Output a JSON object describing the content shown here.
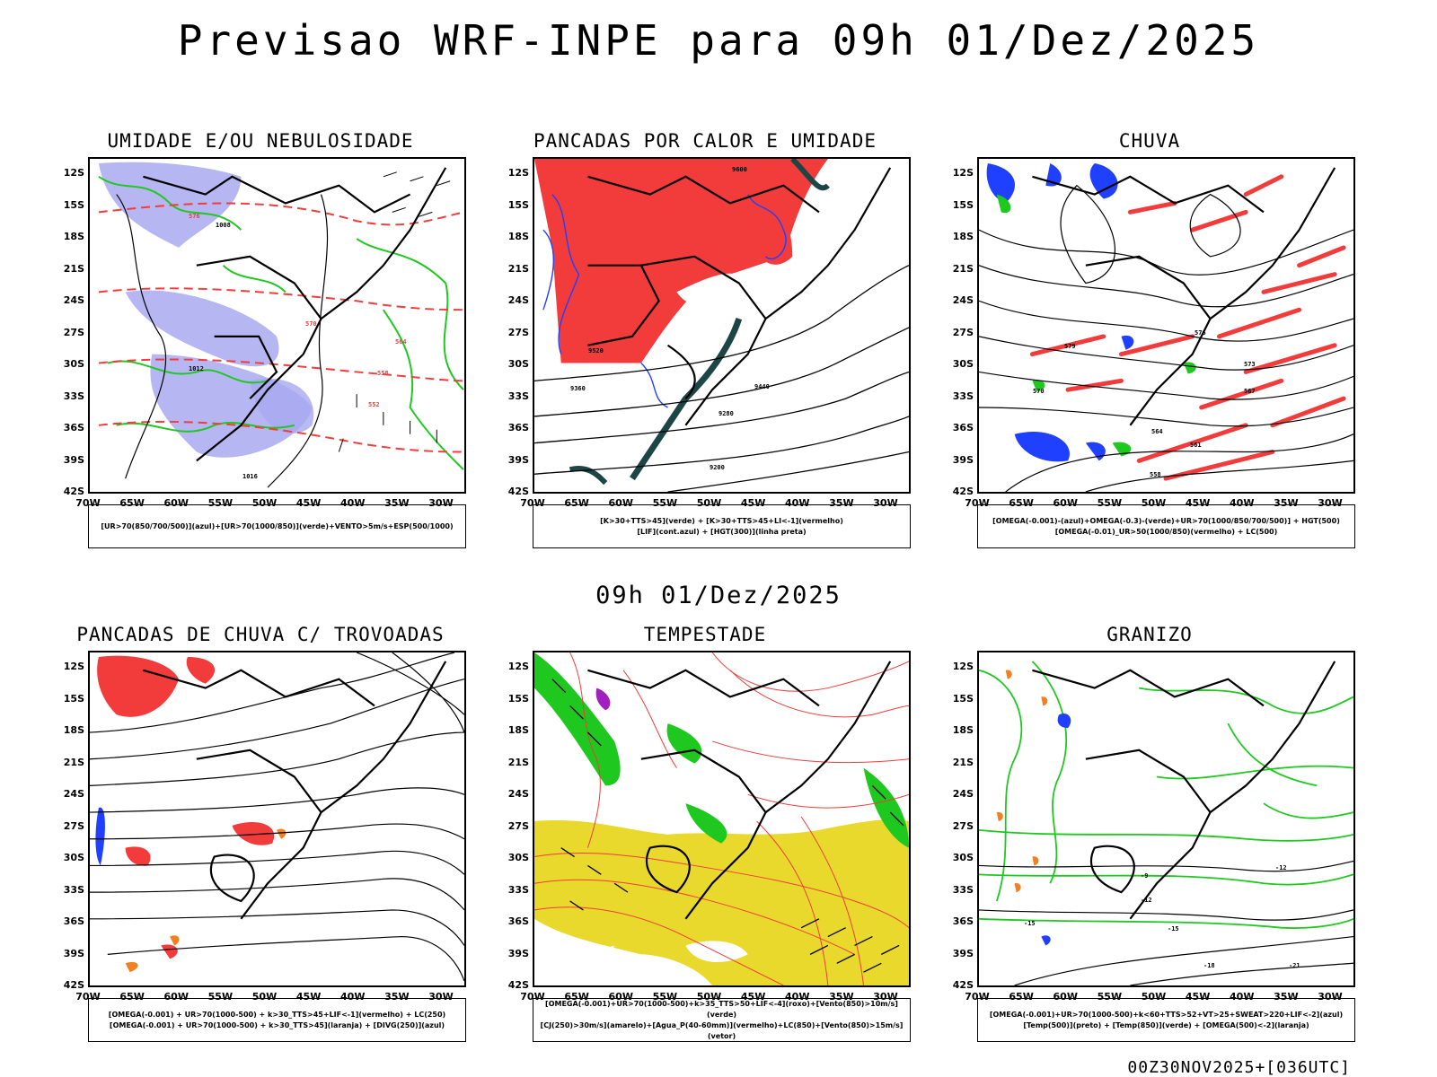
{
  "main_title": "Previsao WRF-INPE  para 09h 01/Dez/2025",
  "mid_time": "09h 01/Dez/2025",
  "footer": "00Z30NOV2025+[036UTC]",
  "axes": {
    "lat_labels": [
      "12S",
      "15S",
      "18S",
      "21S",
      "24S",
      "27S",
      "30S",
      "33S",
      "36S",
      "39S",
      "42S"
    ],
    "lon_labels": [
      "70W",
      "65W",
      "60W",
      "55W",
      "50W",
      "45W",
      "40W",
      "35W",
      "30W"
    ]
  },
  "colors": {
    "red": "#f23b3b",
    "green": "#1fc81f",
    "blue": "#2040ff",
    "lavender": "#a9a9f0",
    "yellow": "#e8d92c",
    "teal": "#1e4545",
    "purple": "#a020c0",
    "orange": "#f08020"
  },
  "panels": [
    {
      "title": "UMIDADE E/OU NEBULOSIDADE",
      "legend": [
        "[UR>70(850/700/500)](azul)+[UR>70(1000/850)](verde)+VENTO>5m/s+ESP(500/1000)"
      ],
      "contour_labels": [
        "1008",
        "1012",
        "1016",
        "576",
        "570",
        "564",
        "558",
        "552"
      ]
    },
    {
      "title": "PANCADAS POR CALOR E UMIDADE",
      "legend": [
        "[K>30+TTS>45](verde) + [K>30+TTS>45+LI<-1](vermelho)",
        "[LIF](cont.azul) + [HGT(300)](linha preta)"
      ],
      "contour_labels": [
        "9600",
        "9520",
        "9440",
        "9360",
        "9280",
        "9200"
      ]
    },
    {
      "title": "CHUVA",
      "legend": [
        "[OMEGA(-0.001)-(azul)+OMEGA(-0.3)-(verde)+UR>70(1000/850/700/500)] + HGT(500)",
        "[OMEGA(-0.01)_UR>50(1000/850)(vermelho) + LC(500)"
      ],
      "contour_labels": [
        "579",
        "576",
        "573",
        "570",
        "567",
        "564",
        "561",
        "558"
      ]
    },
    {
      "title": "PANCADAS DE CHUVA C/ TROVOADAS",
      "legend": [
        "[OMEGA(-0.001) + UR>70(1000-500) + k>30_TTS>45+LIF<-1](vermelho) + LC(250)",
        "[OMEGA(-0.001) + UR>70(1000-500) + k>30_TTS>45](laranja) + [DIVG(250)](azul)"
      ],
      "contour_labels": []
    },
    {
      "title": "TEMPESTADE",
      "legend": [
        "[OMEGA(-0.001)+UR>70(1000-500)+k>35_TTS>50+LIF<-4](roxo)+[Vento(850)>10m/s](verde)",
        "[CJ(250)>30m/s](amarelo)+[Agua_P(40-60mm)](vermelho)+LC(850)+[Vento(850)>15m/s](vetor)"
      ],
      "contour_labels": []
    },
    {
      "title": "GRANIZO",
      "legend": [
        "[OMEGA(-0.001)+UR>70(1000-500)+k<60+TTS>52+VT>25+SWEAT>220+LIF<-2](azul)",
        "[Temp(500)](preto) + [Temp(850)](verde) + [OMEGA(500)<-2](laranja)"
      ],
      "contour_labels": [
        "-12",
        "-15",
        "-18",
        "-21",
        "-9"
      ]
    }
  ]
}
